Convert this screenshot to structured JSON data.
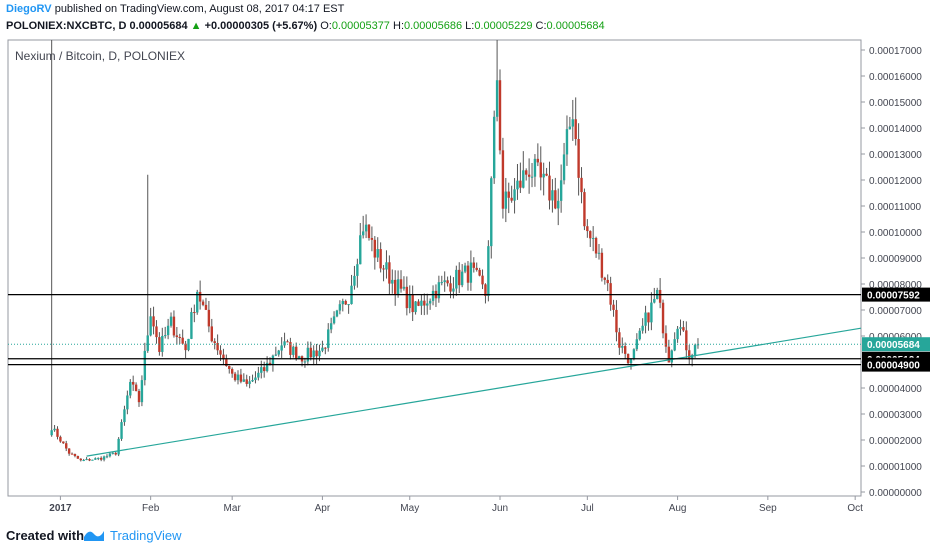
{
  "header": {
    "author": "DiegoRV",
    "published": " published on TradingView.com, August 08, 2017 04:17 EST",
    "symbol_line": "POLONIEX:NXCBTC, D",
    "price": " 0.00005684 ",
    "up_arrow": "▲",
    "change": " +0.00000305 (+5.67%) ",
    "o_label": "O:",
    "o_value": "0.00005377",
    "h_label": " H:",
    "h_value": "0.00005686",
    "l_label": " L:",
    "l_value": "0.00005229",
    "c_label": " C:",
    "c_value": "0.00005684"
  },
  "chart_title": "Nexium / Bitcoin, D, POLONIEX",
  "footer": {
    "created_with": "Created with",
    "brand": "TradingView"
  },
  "colors": {
    "up": "#26a69a",
    "down": "#c0392b",
    "trendline": "#26a69a",
    "level_line": "#000000",
    "current_price": "#26a69a",
    "accent": "#2196f3"
  },
  "chart_data": {
    "type": "candlestick",
    "title": "Nexium / Bitcoin, D, POLONIEX",
    "x_ticks": [
      "2017",
      "Feb",
      "Mar",
      "Apr",
      "May",
      "Jun",
      "Jul",
      "Aug",
      "Sep",
      "Oct"
    ],
    "y_ticks": [
      "0.00017000",
      "0.00016000",
      "0.00015000",
      "0.00014000",
      "0.00013000",
      "0.00012000",
      "0.00011000",
      "0.00010000",
      "0.00009000",
      "0.00008000",
      "0.00007000",
      "0.00006000",
      "0.00005000",
      "0.00004000",
      "0.00003000",
      "0.00002000",
      "0.00001000",
      "0.00000000"
    ],
    "y_range": [
      0,
      0.000175
    ],
    "x_range": [
      "2016-12-14",
      "2017-10-03"
    ],
    "grid": false,
    "levels": [
      {
        "label": "0.00007592",
        "value": 7.592e-05
      },
      {
        "label": "0.00005124",
        "value": 5.124e-05
      },
      {
        "label": "0.00004900",
        "value": 4.9e-05
      }
    ],
    "current_price": {
      "label": "0.00005684",
      "value": 5.684e-05
    },
    "trendline": {
      "start": [
        "2017-01-10",
        1.38e-05
      ],
      "end": [
        "2017-10-03",
        6.3e-05
      ]
    },
    "price_path": [
      [
        "2016-12-29",
        2.5e-05
      ],
      [
        "2017-01-04",
        1.5e-05
      ],
      [
        "2017-01-08",
        1.2e-05
      ],
      [
        "2017-01-15",
        1.3e-05
      ],
      [
        "2017-01-20",
        1.5e-05
      ],
      [
        "2017-01-25",
        4.2e-05
      ],
      [
        "2017-01-28",
        3.5e-05
      ],
      [
        "2017-02-01",
        7e-05
      ],
      [
        "2017-02-04",
        5.5e-05
      ],
      [
        "2017-02-08",
        6.5e-05
      ],
      [
        "2017-02-13",
        5.5e-05
      ],
      [
        "2017-02-17",
        7.8e-05
      ],
      [
        "2017-02-22",
        6e-05
      ],
      [
        "2017-03-01",
        4.5e-05
      ],
      [
        "2017-03-06",
        4.1e-05
      ],
      [
        "2017-03-12",
        4.7e-05
      ],
      [
        "2017-03-18",
        5.7e-05
      ],
      [
        "2017-03-25",
        5.2e-05
      ],
      [
        "2017-04-01",
        5.5e-05
      ],
      [
        "2017-04-05",
        6.5e-05
      ],
      [
        "2017-04-10",
        7.6e-05
      ],
      [
        "2017-04-15",
        0.000103
      ],
      [
        "2017-04-20",
        9e-05
      ],
      [
        "2017-04-26",
        8e-05
      ],
      [
        "2017-05-03",
        7e-05
      ],
      [
        "2017-05-10",
        7.8e-05
      ],
      [
        "2017-05-17",
        8.2e-05
      ],
      [
        "2017-05-22",
        8.5e-05
      ],
      [
        "2017-05-27",
        7.6e-05
      ],
      [
        "2017-05-31",
        0.00016
      ],
      [
        "2017-06-02",
        0.00011
      ],
      [
        "2017-06-06",
        0.000115
      ],
      [
        "2017-06-11",
        0.000125
      ],
      [
        "2017-06-16",
        0.000118
      ],
      [
        "2017-06-21",
        0.000112
      ],
      [
        "2017-06-26",
        0.000148
      ],
      [
        "2017-06-30",
        0.000102
      ],
      [
        "2017-07-04",
        9.3e-05
      ],
      [
        "2017-07-08",
        8e-05
      ],
      [
        "2017-07-12",
        5.7e-05
      ],
      [
        "2017-07-16",
        5e-05
      ],
      [
        "2017-07-21",
        6.6e-05
      ],
      [
        "2017-07-25",
        7.6e-05
      ],
      [
        "2017-07-29",
        5.2e-05
      ],
      [
        "2017-08-01",
        6.6e-05
      ],
      [
        "2017-08-05",
        5.3e-05
      ],
      [
        "2017-08-08",
        5.68e-05
      ]
    ],
    "spikes": [
      {
        "date": "2016-12-29",
        "high": 0.000175
      },
      {
        "date": "2017-01-31",
        "high": 0.000122
      },
      {
        "date": "2017-05-31",
        "high": 0.000175
      }
    ]
  }
}
